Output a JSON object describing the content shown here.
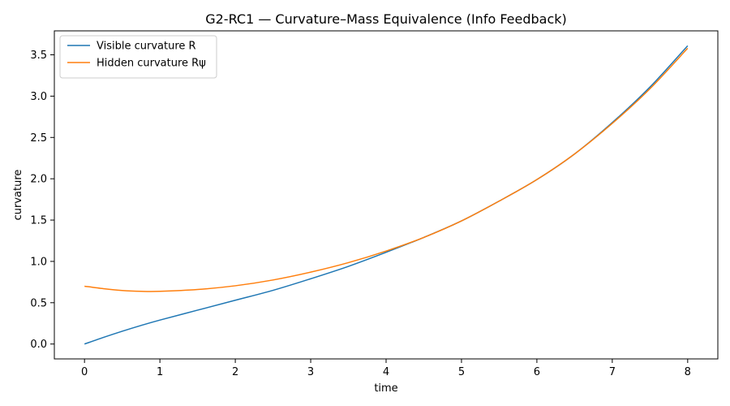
{
  "chart_data": {
    "type": "line",
    "title": "G2-RC1 — Curvature–Mass Equivalence (Info Feedback)",
    "xlabel": "time",
    "ylabel": "curvature",
    "xlim": [
      -0.4,
      8.4
    ],
    "ylim": [
      -0.18,
      3.79
    ],
    "xticks": [
      0,
      1,
      2,
      3,
      4,
      5,
      6,
      7,
      8
    ],
    "xtick_labels": [
      "0",
      "1",
      "2",
      "3",
      "4",
      "5",
      "6",
      "7",
      "8"
    ],
    "yticks": [
      0.0,
      0.5,
      1.0,
      1.5,
      2.0,
      2.5,
      3.0,
      3.5
    ],
    "ytick_labels": [
      "0.0",
      "0.5",
      "1.0",
      "1.5",
      "2.0",
      "2.5",
      "3.0",
      "3.5"
    ],
    "grid": false,
    "legend_position": "top-left",
    "series": [
      {
        "name": "Visible curvature R",
        "color": "#1f77b4",
        "x": [
          0,
          0.25,
          0.5,
          0.75,
          1.0,
          1.5,
          2.0,
          2.5,
          3.0,
          3.5,
          4.0,
          4.5,
          5.0,
          5.5,
          6.0,
          6.5,
          7.0,
          7.5,
          8.0
        ],
        "y": [
          0.0,
          0.08,
          0.155,
          0.225,
          0.29,
          0.41,
          0.53,
          0.65,
          0.79,
          0.94,
          1.11,
          1.29,
          1.49,
          1.73,
          1.99,
          2.3,
          2.68,
          3.11,
          3.61
        ]
      },
      {
        "name": "Hidden curvature Rψ",
        "color": "#ff7f0e",
        "x": [
          0,
          0.25,
          0.5,
          0.75,
          1.0,
          1.5,
          2.0,
          2.5,
          3.0,
          3.5,
          4.0,
          4.5,
          5.0,
          5.5,
          6.0,
          6.5,
          7.0,
          7.5,
          8.0
        ],
        "y": [
          0.7,
          0.67,
          0.648,
          0.638,
          0.638,
          0.66,
          0.705,
          0.775,
          0.87,
          0.985,
          1.125,
          1.29,
          1.49,
          1.73,
          1.99,
          2.3,
          2.67,
          3.09,
          3.58
        ]
      }
    ]
  }
}
